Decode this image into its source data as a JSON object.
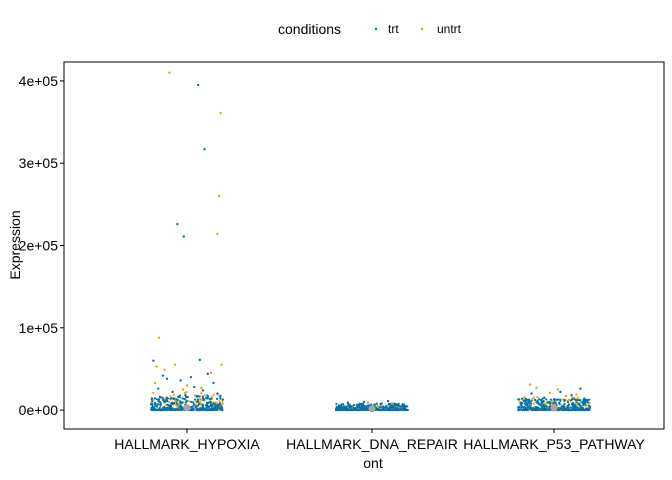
{
  "legend": {
    "title": "conditions",
    "entries": [
      {
        "label": "trt",
        "color": "#0072B2"
      },
      {
        "label": "untrt",
        "color": "#E6A800"
      }
    ],
    "placement": "top"
  },
  "colors": {
    "trt": "#0072B2",
    "untrt": "#E6A800",
    "mean_marker": "#A6A6A6",
    "axis": "#000000"
  },
  "chart_data": {
    "type": "scatter",
    "subtype": "jitter strip plot by category with mean point",
    "xlabel": "ont",
    "ylabel": "Expression",
    "categories": [
      "HALLMARK_HYPOXIA",
      "HALLMARK_DNA_REPAIR",
      "HALLMARK_P53_PATHWAY"
    ],
    "ylim": [
      -23000,
      423000
    ],
    "yticks": [
      0,
      100000,
      200000,
      300000,
      400000
    ],
    "ytick_labels": [
      "0e+00",
      "1e+05",
      "2e+05",
      "3e+05",
      "4e+05"
    ],
    "grid": false,
    "legend_placement": "top",
    "mean_marker": {
      "values": [
        3000,
        1500,
        2500
      ]
    },
    "series": [
      {
        "name": "trt",
        "color": "#0072B2",
        "points": [
          [
            "HALLMARK_HYPOXIA",
            -0.42,
            60000
          ],
          [
            "HALLMARK_HYPOXIA",
            0.14,
            395000
          ],
          [
            "HALLMARK_HYPOXIA",
            0.22,
            317000
          ],
          [
            "HALLMARK_HYPOXIA",
            -0.12,
            226000
          ],
          [
            "HALLMARK_HYPOXIA",
            -0.04,
            211000
          ],
          [
            "HALLMARK_HYPOXIA",
            0.16,
            61000
          ],
          [
            "HALLMARK_HYPOXIA",
            -0.3,
            42000
          ],
          [
            "HALLMARK_HYPOXIA",
            -0.25,
            38000
          ],
          [
            "HALLMARK_HYPOXIA",
            -0.08,
            36000
          ],
          [
            "HALLMARK_HYPOXIA",
            0.05,
            40000
          ],
          [
            "HALLMARK_HYPOXIA",
            0.26,
            44000
          ],
          [
            "HALLMARK_HYPOXIA",
            0.33,
            33000
          ],
          [
            "HALLMARK_HYPOXIA",
            -0.36,
            26000
          ],
          [
            "HALLMARK_HYPOXIA",
            0.09,
            28000
          ],
          [
            "HALLMARK_HYPOXIA",
            -0.18,
            22000
          ],
          [
            "HALLMARK_HYPOXIA",
            0.2,
            24000
          ],
          [
            "HALLMARK_HYPOXIA",
            0.38,
            20000
          ],
          [
            "HALLMARK_HYPOXIA",
            -0.02,
            18000
          ],
          [
            "HALLMARK_DNA_REPAIR",
            -0.3,
            9000
          ],
          [
            "HALLMARK_DNA_REPAIR",
            0.12,
            8000
          ],
          [
            "HALLMARK_DNA_REPAIR",
            0.3,
            7000
          ],
          [
            "HALLMARK_DNA_REPAIR",
            -0.1,
            10000
          ],
          [
            "HALLMARK_DNA_REPAIR",
            0.2,
            11000
          ],
          [
            "HALLMARK_P53_PATHWAY",
            0.33,
            26000
          ],
          [
            "HALLMARK_P53_PATHWAY",
            -0.28,
            20000
          ],
          [
            "HALLMARK_P53_PATHWAY",
            0.08,
            22000
          ],
          [
            "HALLMARK_P53_PATHWAY",
            0.22,
            18000
          ],
          [
            "HALLMARK_P53_PATHWAY",
            -0.12,
            15000
          ],
          [
            "HALLMARK_P53_PATHWAY",
            0.38,
            14000
          ]
        ]
      },
      {
        "name": "untrt",
        "color": "#E6A800",
        "points": [
          [
            "HALLMARK_HYPOXIA",
            -0.22,
            410000
          ],
          [
            "HALLMARK_HYPOXIA",
            0.42,
            361000
          ],
          [
            "HALLMARK_HYPOXIA",
            0.4,
            260000
          ],
          [
            "HALLMARK_HYPOXIA",
            0.38,
            214000
          ],
          [
            "HALLMARK_HYPOXIA",
            -0.35,
            88000
          ],
          [
            "HALLMARK_HYPOXIA",
            -0.38,
            53000
          ],
          [
            "HALLMARK_HYPOXIA",
            -0.15,
            55000
          ],
          [
            "HALLMARK_HYPOXIA",
            0.43,
            55000
          ],
          [
            "HALLMARK_HYPOXIA",
            -0.28,
            49000
          ],
          [
            "HALLMARK_HYPOXIA",
            0.3,
            45000
          ],
          [
            "HALLMARK_HYPOXIA",
            -0.4,
            33000
          ],
          [
            "HALLMARK_HYPOXIA",
            0.0,
            30000
          ],
          [
            "HALLMARK_HYPOXIA",
            0.18,
            27000
          ],
          [
            "HALLMARK_HYPOXIA",
            -0.05,
            25000
          ],
          [
            "HALLMARK_DNA_REPAIR",
            -0.05,
            9000
          ],
          [
            "HALLMARK_DNA_REPAIR",
            0.25,
            8000
          ],
          [
            "HALLMARK_P53_PATHWAY",
            -0.3,
            31000
          ],
          [
            "HALLMARK_P53_PATHWAY",
            -0.22,
            27000
          ],
          [
            "HALLMARK_P53_PATHWAY",
            0.05,
            25000
          ],
          [
            "HALLMARK_P53_PATHWAY",
            -0.05,
            21000
          ],
          [
            "HALLMARK_P53_PATHWAY",
            0.28,
            19000
          ],
          [
            "HALLMARK_P53_PATHWAY",
            0.15,
            17000
          ]
        ]
      }
    ],
    "dense_band": [
      {
        "category": "HALLMARK_HYPOXIA",
        "trt_range": [
          0,
          18000
        ],
        "untrt_range": [
          0,
          22000
        ]
      },
      {
        "category": "HALLMARK_DNA_REPAIR",
        "trt_range": [
          0,
          8000
        ],
        "untrt_range": [
          0,
          6000
        ]
      },
      {
        "category": "HALLMARK_P53_PATHWAY",
        "trt_range": [
          0,
          14000
        ],
        "untrt_range": [
          0,
          16000
        ]
      }
    ]
  }
}
